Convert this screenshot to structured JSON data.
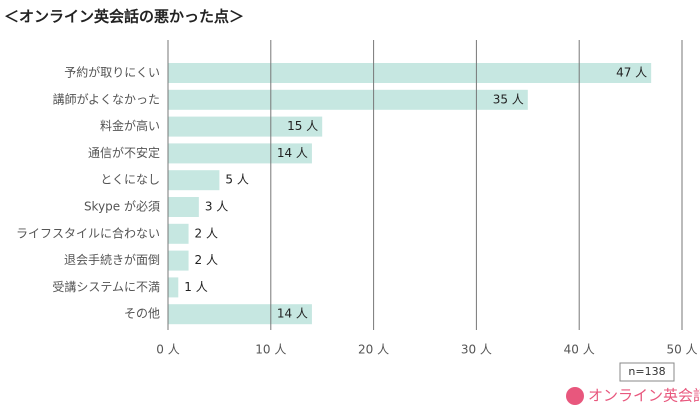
{
  "chart_data": {
    "type": "bar",
    "title": "＜オンライン英会話の悪かった点＞",
    "categories": [
      "予約が取りにくい",
      "講師がよくなかった",
      "料金が高い",
      "通信が不安定",
      "とくになし",
      "Skype が必須",
      "ライフスタイルに合わない",
      "退会手続きが面倒",
      "受講システムに不満",
      "その他"
    ],
    "values": [
      47,
      35,
      15,
      14,
      5,
      3,
      2,
      2,
      1,
      14
    ],
    "value_labels": [
      "47 人",
      "35 人",
      "15 人",
      "14 人",
      "5 人",
      "3 人",
      "2 人",
      "2 人",
      "1 人",
      "14 人"
    ],
    "color": "#c6e7e1",
    "xlim": [
      0,
      50
    ],
    "xticks": [
      {
        "value": 0,
        "label": "0 人"
      },
      {
        "value": 10,
        "label": "10 人"
      },
      {
        "value": 20,
        "label": "20 人"
      },
      {
        "value": 30,
        "label": "30 人"
      },
      {
        "value": 40,
        "label": "40 人"
      },
      {
        "value": 50,
        "label": "50 人"
      }
    ],
    "grid": true,
    "annotation": "n=138",
    "logo": "オンライン英会話"
  }
}
